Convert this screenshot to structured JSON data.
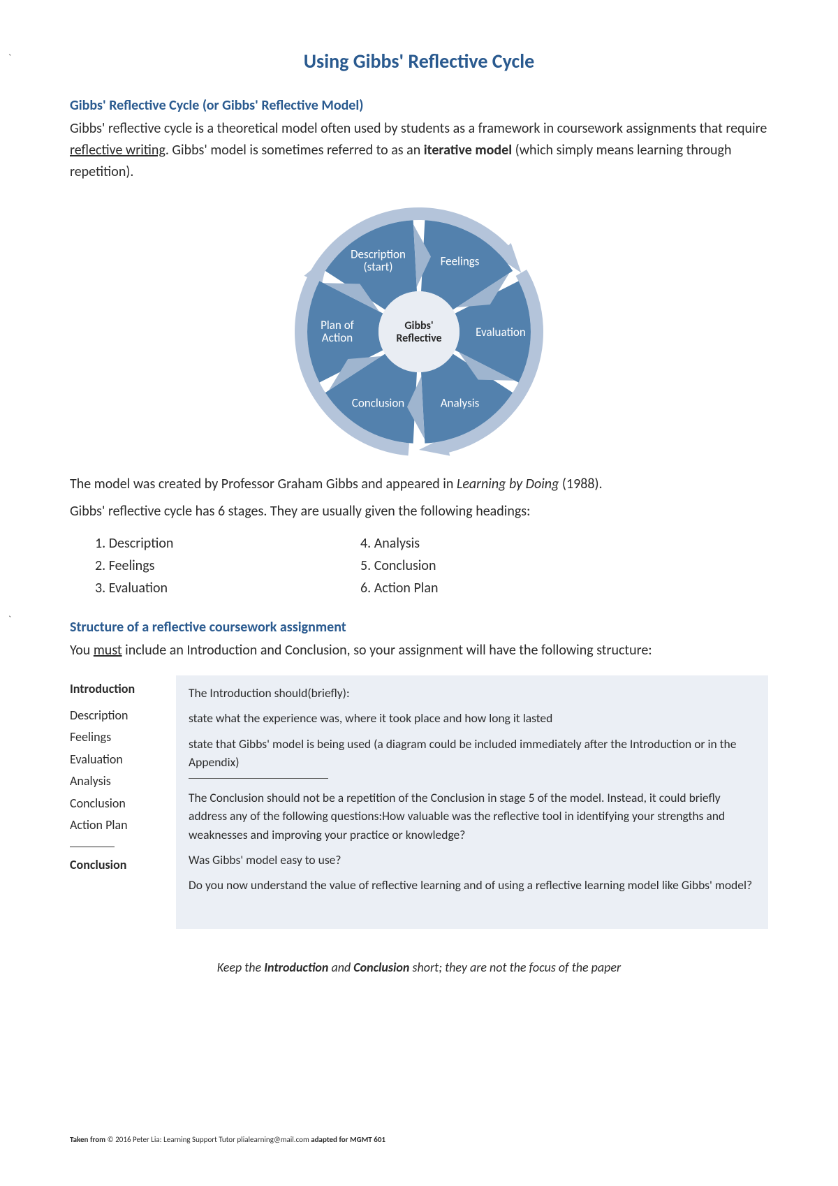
{
  "colors": {
    "heading": "#2a5a8f",
    "body": "#2b2b2b",
    "segment_fill": "#5381ad",
    "outer_ring": "#b4c4da",
    "center_fill": "#e9edf3",
    "arrow_fill": "#9fb5cf",
    "structure_bg": "#ebeff5"
  },
  "title": "Using Gibbs' Reflective Cycle",
  "section1": {
    "heading": "Gibbs' Reflective Cycle (or Gibbs' Reflective Model)",
    "para1_pre": "Gibbs' reflective cycle is a theoretical model often used by students as a framework in coursework assignments that require ",
    "para1_underline": "reflective writing",
    "para1_mid": ". Gibbs' model is sometimes referred to as an ",
    "para1_bold": "iterative model",
    "para1_post": " (which simply means learning through repetition)."
  },
  "diagram": {
    "type": "circular-cycle",
    "center_line1": "Gibbs'",
    "center_line2": "Reflective",
    "segments": [
      {
        "line1": "Description",
        "line2": "(start)",
        "angle_deg": 330
      },
      {
        "line1": "Feelings",
        "line2": "",
        "angle_deg": 30
      },
      {
        "line1": "Evaluation",
        "line2": "",
        "angle_deg": 90
      },
      {
        "line1": "Analysis",
        "line2": "",
        "angle_deg": 150
      },
      {
        "line1": "Conclusion",
        "line2": "",
        "angle_deg": 210
      },
      {
        "line1": "Plan of",
        "line2": "Action",
        "angle_deg": 270
      }
    ],
    "inner_r": 58,
    "mid_r": 117,
    "outer_r": 160,
    "ring_outer": 178,
    "svg_size": 390
  },
  "after_diagram": {
    "p1_pre": "The model was created by Professor Graham Gibbs and appeared in ",
    "p1_italic": "Learning by Doing",
    "p1_post": " (1988).",
    "p2": "Gibbs' reflective cycle has 6 stages. They are usually given the following headings:"
  },
  "stages_left": [
    "1.   Description",
    "2.   Feelings",
    "3.   Evaluation"
  ],
  "stages_right": [
    "4. Analysis",
    "5. Conclusion",
    "6. Action Plan"
  ],
  "section2": {
    "heading": "Structure of a reflective coursework assignment",
    "intro_pre": "You ",
    "intro_u": "must",
    "intro_post": " include an Introduction and Conclusion, so your assignment will have the following structure:"
  },
  "structure_left": {
    "top": "Introduction",
    "items": [
      "Description",
      "Feelings",
      "Evaluation",
      "Analysis",
      "Conclusion",
      "Action Plan"
    ],
    "bottom": "Conclusion"
  },
  "structure_right": {
    "r1_pre": "The ",
    "r1_b": "Introduction",
    "r1_post": " should(briefly):",
    "r2": "state what the experience was, where it took place and how long it lasted",
    "r3_pre": "state that Gibbs' model is being used (a diagram ",
    "r3_i": "could",
    "r3_post": " be included immediately after the Introduction or in the Appendix)",
    "r4_pre": "The ",
    "r4_b1": "Conclusion",
    "r4_mid1": " should ",
    "r4_b2": "not",
    "r4_mid2": " be a repetition of the Conclusion in stage 5 of the model. Instead, it could ",
    "r4_b3": "briefly",
    "r4_post": " address any of the following questions:How valuable was the reflective tool in identifying your strengths and weaknesses and improving your practice or knowledge?",
    "r5": "Was Gibbs' model easy to use?",
    "r6": "Do you now understand the value of reflective learning and of using a reflective learning model like Gibbs' model?"
  },
  "keep_note": {
    "pre": "Keep the ",
    "b1": "Introduction",
    "mid": " and ",
    "b2": "Conclusion",
    "post": " short; they are not the focus of the paper"
  },
  "footer": {
    "pre": "Taken from ",
    "mid": "  © 2016 Peter Lia: Learning Support Tutor plialearning@mail.com ",
    "post": "adapted for MGMT 601"
  }
}
